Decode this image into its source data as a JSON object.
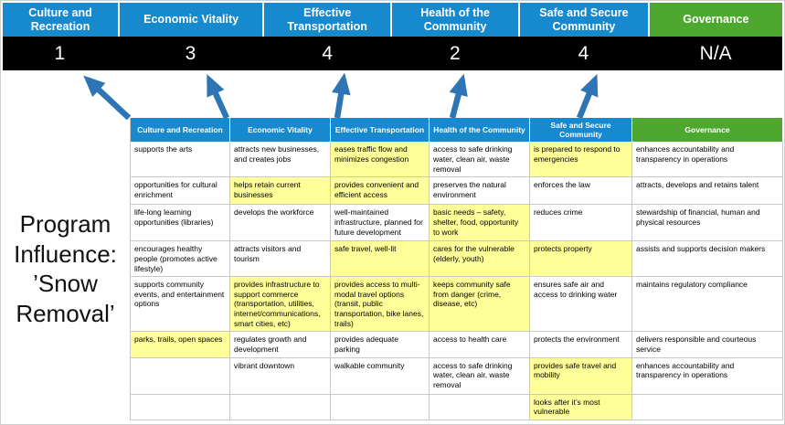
{
  "title": "Program Influence: ’Snow Removal’",
  "colors": {
    "header_blue": "#1789CE",
    "header_green": "#4EA72E",
    "score_band": "#000000",
    "highlight_yellow": "#FFFF99",
    "arrow_blue": "#2E75B6"
  },
  "summary": {
    "columns": [
      {
        "label": "Culture and Recreation",
        "score": "1",
        "theme": "blue"
      },
      {
        "label": "Economic Vitality",
        "score": "3",
        "theme": "blue"
      },
      {
        "label": "Effective Transportation",
        "score": "4",
        "theme": "blue"
      },
      {
        "label": "Health of the Community",
        "score": "2",
        "theme": "blue"
      },
      {
        "label": "Safe and Secure Community",
        "score": "4",
        "theme": "blue"
      },
      {
        "label": "Governance",
        "score": "N/A",
        "theme": "green"
      }
    ]
  },
  "matrix": {
    "headers": [
      {
        "label": "Culture and Recreation",
        "theme": "blue"
      },
      {
        "label": "Economic Vitality",
        "theme": "blue"
      },
      {
        "label": "Effective Transportation",
        "theme": "blue"
      },
      {
        "label": "Health of the Community",
        "theme": "blue"
      },
      {
        "label": "Safe and Secure Community",
        "theme": "blue"
      },
      {
        "label": "Governance",
        "theme": "green"
      }
    ],
    "rows": [
      [
        {
          "text": "supports the arts",
          "highlight": false
        },
        {
          "text": "attracts new businesses, and creates jobs",
          "highlight": false
        },
        {
          "text": "eases traffic flow and minimizes congestion",
          "highlight": true
        },
        {
          "text": "access to safe drinking water, clean air, waste removal",
          "highlight": false
        },
        {
          "text": "is prepared to respond to emergencies",
          "highlight": true
        },
        {
          "text": "enhances accountability and transparency in operations",
          "highlight": false
        }
      ],
      [
        {
          "text": "opportunities for cultural enrichment",
          "highlight": false
        },
        {
          "text": "helps retain current businesses",
          "highlight": true
        },
        {
          "text": "provides convenient and efficient access",
          "highlight": true
        },
        {
          "text": "preserves the natural environment",
          "highlight": false
        },
        {
          "text": "enforces the law",
          "highlight": false
        },
        {
          "text": "attracts, develops and retains talent",
          "highlight": false
        }
      ],
      [
        {
          "text": "life-long learning opportunities (libraries)",
          "highlight": false
        },
        {
          "text": "develops the workforce",
          "highlight": false
        },
        {
          "text": "well-maintained infrastructure, planned for future development",
          "highlight": false
        },
        {
          "text": "basic needs – safety, shelter, food, opportunity to work",
          "highlight": true
        },
        {
          "text": "reduces crime",
          "highlight": false
        },
        {
          "text": "stewardship of financial, human and physical resources",
          "highlight": false
        }
      ],
      [
        {
          "text": "encourages healthy people (promotes active lifestyle)",
          "highlight": false
        },
        {
          "text": "attracts visitors and tourism",
          "highlight": false
        },
        {
          "text": "safe travel, well-lit",
          "highlight": true
        },
        {
          "text": "cares for the vulnerable (elderly, youth)",
          "highlight": true
        },
        {
          "text": "protects property",
          "highlight": true
        },
        {
          "text": "assists and supports decision makers",
          "highlight": false
        }
      ],
      [
        {
          "text": "supports community events, and entertainment options",
          "highlight": false
        },
        {
          "text": "provides infrastructure to support commerce (transportation, utilities, internet/communications, smart cities, etc)",
          "highlight": true
        },
        {
          "text": "provides access to multi-modal travel options (transit, public transportation, bike lanes, trails)",
          "highlight": true
        },
        {
          "text": "keeps community safe from danger (crime, disease, etc)",
          "highlight": true
        },
        {
          "text": "ensures safe air and access to drinking water",
          "highlight": false
        },
        {
          "text": "maintains regulatory compliance",
          "highlight": false
        }
      ],
      [
        {
          "text": "parks, trails, open spaces",
          "highlight": true
        },
        {
          "text": "regulates growth and development",
          "highlight": false
        },
        {
          "text": "provides adequate parking",
          "highlight": false
        },
        {
          "text": "access to health care",
          "highlight": false
        },
        {
          "text": "protects the environment",
          "highlight": false
        },
        {
          "text": "delivers responsible and courteous service",
          "highlight": false
        }
      ],
      [
        {
          "text": "",
          "highlight": false
        },
        {
          "text": "vibrant downtown",
          "highlight": false
        },
        {
          "text": "walkable community",
          "highlight": false
        },
        {
          "text": "access to safe drinking water, clean air, waste removal",
          "highlight": false
        },
        {
          "text": "provides safe travel and mobility",
          "highlight": true
        },
        {
          "text": "enhances accountability and transparency in operations",
          "highlight": false
        }
      ],
      [
        {
          "text": "",
          "highlight": false
        },
        {
          "text": "",
          "highlight": false
        },
        {
          "text": "",
          "highlight": false
        },
        {
          "text": "",
          "highlight": false
        },
        {
          "text": "looks after it’s most vulnerable",
          "highlight": true
        },
        {
          "text": "",
          "highlight": false
        }
      ]
    ]
  }
}
